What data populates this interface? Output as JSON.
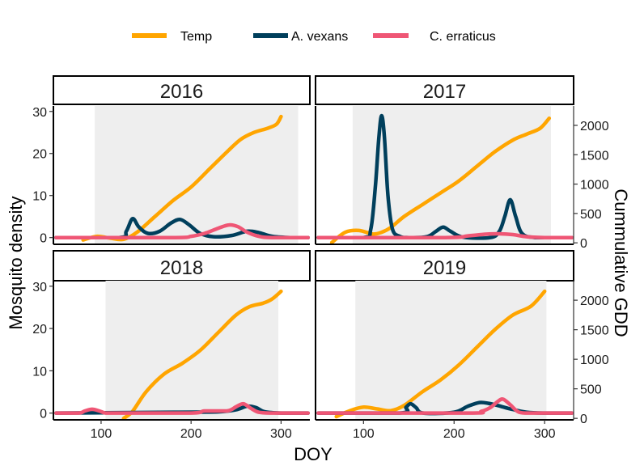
{
  "chart_data": {
    "type": "line",
    "layout": "facet-grid 2x2 with secondary y-axis",
    "xlabel": "DOY",
    "ylabel": "Mosquito density",
    "ylabel_right": "Cummulative GDD",
    "xlim": [
      47,
      332
    ],
    "ylim": [
      -1.6,
      31.3
    ],
    "ylim_right": [
      -25,
      2330
    ],
    "x_ticks": [
      100,
      200,
      300
    ],
    "y_ticks": [
      0,
      10,
      20,
      30
    ],
    "y_ticks_right": [
      0,
      500,
      1000,
      1500,
      2000
    ],
    "grid": false,
    "legend_position": "top",
    "series_styles": [
      {
        "name": "Temp",
        "color": "#FFA500"
      },
      {
        "name": "A. vexans",
        "color": "#003F5C"
      },
      {
        "name": "C. erraticus",
        "color": "#EF5675"
      }
    ],
    "shade_color": "#EEEEEE",
    "panels": [
      {
        "label": "2016",
        "season": [
          93,
          319
        ],
        "series": [
          {
            "name": "Temp",
            "axis": "right",
            "x": [
              80,
              95,
              110,
              125,
              140,
              160,
              180,
              200,
              220,
              240,
              255,
              270,
              285,
              295,
              300
            ],
            "y": [
              50,
              110,
              80,
              60,
              180,
              450,
              720,
              950,
              1250,
              1550,
              1760,
              1880,
              1950,
              2020,
              2150
            ]
          },
          {
            "name": "A. vexans",
            "axis": "left",
            "x": [
              50,
              120,
              128,
              135,
              142,
              152,
              165,
              178,
              188,
              198,
              210,
              225,
              245,
              262,
              275,
              290,
              310,
              330
            ],
            "y": [
              0,
              0,
              1.5,
              4.5,
              2.5,
              1,
              1.5,
              3.5,
              4.3,
              3,
              1,
              0.2,
              0.5,
              1.5,
              1.2,
              0.3,
              0,
              0
            ]
          },
          {
            "name": "C. erraticus",
            "axis": "left",
            "x": [
              50,
              180,
              200,
              215,
              230,
              242,
              252,
              262,
              275,
              290,
              330
            ],
            "y": [
              0,
              0,
              0.3,
              1,
              2.2,
              3,
              2.6,
              1.3,
              0.3,
              0,
              0
            ]
          }
        ]
      },
      {
        "label": "2017",
        "season": [
          88,
          307
        ],
        "series": [
          {
            "name": "Temp",
            "axis": "right",
            "x": [
              65,
              80,
              95,
              110,
              120,
              130,
              145,
              165,
              185,
              205,
              225,
              245,
              265,
              280,
              295,
              305
            ],
            "y": [
              5,
              180,
              210,
              150,
              180,
              260,
              450,
              650,
              850,
              1050,
              1300,
              1550,
              1750,
              1850,
              1950,
              2120
            ]
          },
          {
            "name": "A. vexans",
            "axis": "left",
            "x": [
              50,
              100,
              108,
              113,
              117,
              120,
              123,
              127,
              132,
              140,
              150,
              170,
              180,
              188,
              196,
              210,
              240,
              250,
              256,
              262,
              268,
              275,
              290,
              330
            ],
            "y": [
              0,
              0,
              2,
              12,
              24,
              29,
              24,
              10,
              2,
              0.3,
              0,
              0.2,
              1.5,
              2.5,
              1.5,
              0.1,
              0,
              1.5,
              5,
              9,
              5,
              1,
              0,
              0
            ]
          },
          {
            "name": "C. erraticus",
            "axis": "left",
            "x": [
              50,
              190,
              215,
              235,
              250,
              265,
              280,
              300,
              330
            ],
            "y": [
              0,
              0,
              0.4,
              0.8,
              0.9,
              0.7,
              0.2,
              0,
              0
            ]
          }
        ]
      },
      {
        "label": "2018",
        "season": [
          105,
          297
        ],
        "series": [
          {
            "name": "Temp",
            "axis": "right",
            "x": [
              125,
              135,
              150,
              170,
              190,
              210,
              230,
              250,
              265,
              280,
              290,
              300
            ],
            "y": [
              0,
              120,
              450,
              750,
              930,
              1150,
              1450,
              1750,
              1890,
              1950,
              2020,
              2150
            ]
          },
          {
            "name": "A. vexans",
            "axis": "left",
            "x": [
              50,
              180,
              230,
              250,
              262,
              272,
              282,
              300,
              330
            ],
            "y": [
              0,
              0.2,
              0.3,
              0.8,
              1.6,
              1.3,
              0.3,
              0,
              0
            ]
          },
          {
            "name": "C. erraticus",
            "axis": "left",
            "x": [
              50,
              75,
              82,
              90,
              98,
              105,
              115,
              200,
              215,
              240,
              250,
              258,
              266,
              275,
              290,
              330
            ],
            "y": [
              0,
              0,
              0.5,
              0.9,
              0.5,
              0,
              0,
              0,
              0.5,
              0.5,
              1.5,
              2.2,
              1.2,
              0.2,
              0,
              0
            ]
          }
        ]
      },
      {
        "label": "2019",
        "season": [
          91,
          302
        ],
        "series": [
          {
            "name": "Temp",
            "axis": "right",
            "x": [
              70,
              85,
              100,
              115,
              130,
              145,
              165,
              185,
              205,
              225,
              245,
              265,
              285,
              300
            ],
            "y": [
              30,
              130,
              190,
              160,
              130,
              220,
              450,
              650,
              900,
              1200,
              1500,
              1750,
              1900,
              2150
            ]
          },
          {
            "name": "A. vexans",
            "axis": "left",
            "x": [
              50,
              140,
              147,
              152,
              158,
              166,
              200,
              215,
              228,
              238,
              248,
              262,
              280,
              300,
              330
            ],
            "y": [
              0,
              0,
              1.4,
              2.2,
              1.3,
              0,
              0.2,
              1.6,
              2.5,
              2.3,
              1.8,
              1,
              0.2,
              0,
              0
            ]
          },
          {
            "name": "C. erraticus",
            "axis": "left",
            "x": [
              50,
              215,
              230,
              240,
              248,
              254,
              262,
              272,
              290,
              330
            ],
            "y": [
              0,
              0,
              0.4,
              1.3,
              2.7,
              3.3,
              2,
              0.2,
              0,
              0
            ]
          }
        ]
      }
    ]
  }
}
